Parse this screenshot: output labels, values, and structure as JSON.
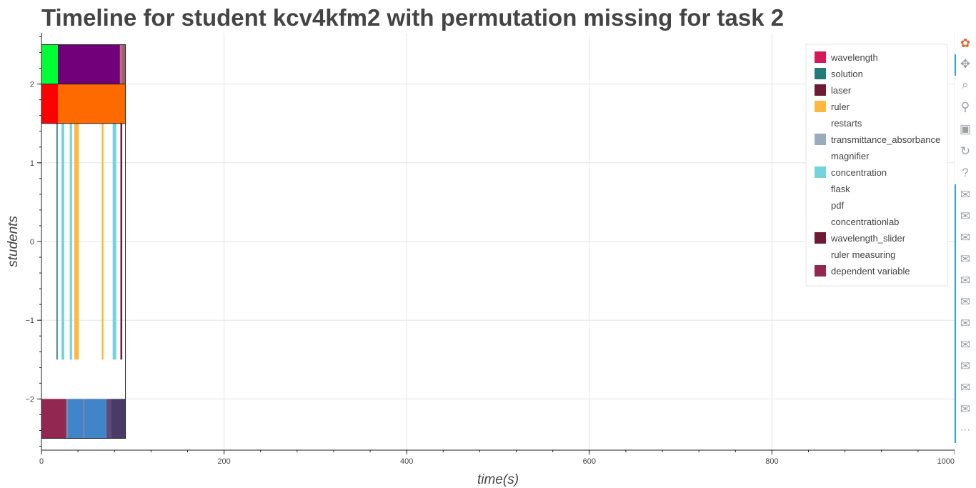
{
  "title": "Timeline for student kcv4kfm2 with permutation missing for task 2",
  "chart_data": {
    "type": "timeline",
    "title": "Timeline for student kcv4kfm2 with permutation missing for task 2",
    "xlabel": "time(s)",
    "ylabel": "students",
    "xlim": [
      0,
      1000
    ],
    "ylim": [
      -2.65,
      2.65
    ],
    "grid": true,
    "x_ticks": [
      "0",
      "200",
      "400",
      "600",
      "800",
      "1000"
    ],
    "x_tick_values": [
      0,
      200,
      400,
      600,
      800,
      1000
    ],
    "y_ticks": [
      "2",
      "1",
      "0",
      "−1",
      "−2"
    ],
    "y_tick_values": [
      2,
      1,
      0,
      -1,
      -2
    ],
    "legend_position": "top-right",
    "legend": [
      {
        "label": "wavelength",
        "color": "#d6175a"
      },
      {
        "label": "solution",
        "color": "#227b78"
      },
      {
        "label": "laser",
        "color": "#6d1a35"
      },
      {
        "label": "ruler",
        "color": "#ffb940"
      },
      {
        "label": "restarts",
        "color": "#ffffff"
      },
      {
        "label": "transmittance_absorbance",
        "color": "#9aabbd"
      },
      {
        "label": "magnifier",
        "color": "#ffffff"
      },
      {
        "label": "concentration",
        "color": "#72d4dc"
      },
      {
        "label": "flask",
        "color": "#ffffff"
      },
      {
        "label": "pdf",
        "color": "#ffffff"
      },
      {
        "label": "concentrationlab",
        "color": "#ffffff"
      },
      {
        "label": "wavelength_slider",
        "color": "#6f1a35"
      },
      {
        "label": "ruler measuring",
        "color": "#ffffff"
      },
      {
        "label": "dependent variable",
        "color": "#922752"
      }
    ],
    "rows": [
      {
        "y_range": [
          2,
          2.5
        ],
        "segments": [
          {
            "x0": 0,
            "x1": 18,
            "color": "#00ff33"
          },
          {
            "x0": 18,
            "x1": 86,
            "color": "#72007a"
          },
          {
            "x0": 86,
            "x1": 88,
            "color": "#c0707a"
          },
          {
            "x0": 88,
            "x1": 92,
            "color": "#a0606a"
          }
        ]
      },
      {
        "y_range": [
          1.5,
          2
        ],
        "segments": [
          {
            "x0": 0,
            "x1": 18,
            "color": "#ff0000"
          },
          {
            "x0": 18,
            "x1": 92,
            "color": "#ff6a00"
          }
        ]
      },
      {
        "y_range": [
          -1.5,
          1.5
        ],
        "segments": [
          {
            "x0": 16.5,
            "x1": 17.8,
            "color": "#227b78"
          },
          {
            "x0": 22,
            "x1": 25,
            "color": "#72d4dc"
          },
          {
            "x0": 31,
            "x1": 33.5,
            "color": "#72d4dc"
          },
          {
            "x0": 36,
            "x1": 41,
            "color": "#ffb940"
          },
          {
            "x0": 66,
            "x1": 68,
            "color": "#ffb940"
          },
          {
            "x0": 78,
            "x1": 82,
            "color": "#72d4dc"
          },
          {
            "x0": 86.5,
            "x1": 88.5,
            "color": "#6d1a35"
          }
        ]
      },
      {
        "y_range": [
          -2.5,
          -2
        ],
        "segments": [
          {
            "x0": 0,
            "x1": 27,
            "color": "#922752"
          },
          {
            "x0": 27,
            "x1": 29,
            "color": "#7a8aa5"
          },
          {
            "x0": 29,
            "x1": 46,
            "color": "#3f85c8"
          },
          {
            "x0": 46,
            "x1": 47,
            "color": "#9a6a8a"
          },
          {
            "x0": 47,
            "x1": 71,
            "color": "#3f85c8"
          },
          {
            "x0": 71,
            "x1": 76,
            "color": "#604a7a"
          },
          {
            "x0": 76,
            "x1": 92,
            "color": "#4a3a68"
          }
        ]
      }
    ],
    "outline_box": {
      "x0": 0,
      "x1": 92,
      "y0": -2.5,
      "y1": 2.5
    }
  },
  "toolbar": {
    "items": [
      {
        "name": "bokeh-logo-icon",
        "glyph": "✿"
      },
      {
        "name": "pan-icon",
        "glyph": "✥"
      },
      {
        "name": "box-zoom-icon",
        "glyph": "⌕"
      },
      {
        "name": "wheel-zoom-icon",
        "glyph": "⚲"
      },
      {
        "name": "save-icon",
        "glyph": "▣"
      },
      {
        "name": "reset-icon",
        "glyph": "↻"
      },
      {
        "name": "help-icon",
        "glyph": "?"
      },
      {
        "name": "hover-icon",
        "glyph": "✉"
      },
      {
        "name": "hover-icon",
        "glyph": "✉"
      },
      {
        "name": "hover-icon",
        "glyph": "✉"
      },
      {
        "name": "hover-icon",
        "glyph": "✉"
      },
      {
        "name": "hover-icon",
        "glyph": "✉"
      },
      {
        "name": "hover-icon",
        "glyph": "✉"
      },
      {
        "name": "hover-icon",
        "glyph": "✉"
      },
      {
        "name": "hover-icon",
        "glyph": "✉"
      },
      {
        "name": "hover-icon",
        "glyph": "✉"
      },
      {
        "name": "hover-icon",
        "glyph": "✉"
      },
      {
        "name": "hover-icon",
        "glyph": "✉"
      },
      {
        "name": "more-icon",
        "glyph": "⋯"
      }
    ]
  }
}
